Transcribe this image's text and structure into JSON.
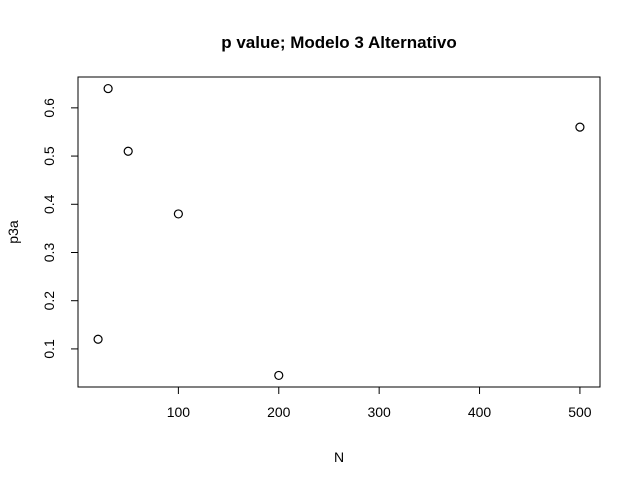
{
  "chart_data": {
    "type": "scatter",
    "title": "p value; Modelo 3 Alternativo",
    "xlabel": "N",
    "ylabel": "p3a",
    "x": [
      20,
      30,
      50,
      100,
      200,
      500
    ],
    "y": [
      0.12,
      0.64,
      0.51,
      0.38,
      0.045,
      0.56
    ],
    "xlim": [
      0,
      520
    ],
    "ylim": [
      0.021,
      0.664
    ],
    "xticks": [
      100,
      200,
      300,
      400,
      500
    ],
    "yticks": [
      0.1,
      0.2,
      0.3,
      0.4,
      0.5,
      0.6
    ],
    "xtick_labels": [
      "100",
      "200",
      "300",
      "400",
      "500"
    ],
    "ytick_labels": [
      "0.1",
      "0.2",
      "0.3",
      "0.4",
      "0.5",
      "0.6"
    ],
    "marker": "open-circle",
    "grid": false,
    "legend": "none"
  }
}
